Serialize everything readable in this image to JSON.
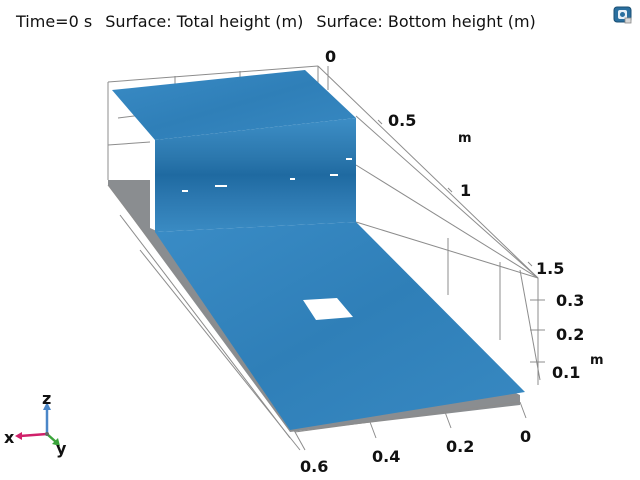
{
  "header": {
    "time": "Time=0 s",
    "surface_total": "Surface: Total height (m)",
    "surface_bottom": "Surface: Bottom height (m)"
  },
  "axes": {
    "z_ticks_upper": [
      "0",
      "0.5",
      "1",
      "1.5"
    ],
    "z_unit_upper": "m",
    "z_ticks_lower": [
      "0.3",
      "0.2",
      "0.1"
    ],
    "z_unit_lower": "m",
    "x_ticks": [
      "0.6",
      "0.4",
      "0.2",
      "0"
    ]
  },
  "triad": {
    "z": "z",
    "x": "x",
    "y": "y"
  },
  "colors": {
    "water": "#3b87c0",
    "water_dark": "#2a6f9f",
    "bottom": "#8a8d90",
    "grid": "#8c8c8c"
  },
  "icons": {
    "toolbar": "camera-view-icon"
  }
}
